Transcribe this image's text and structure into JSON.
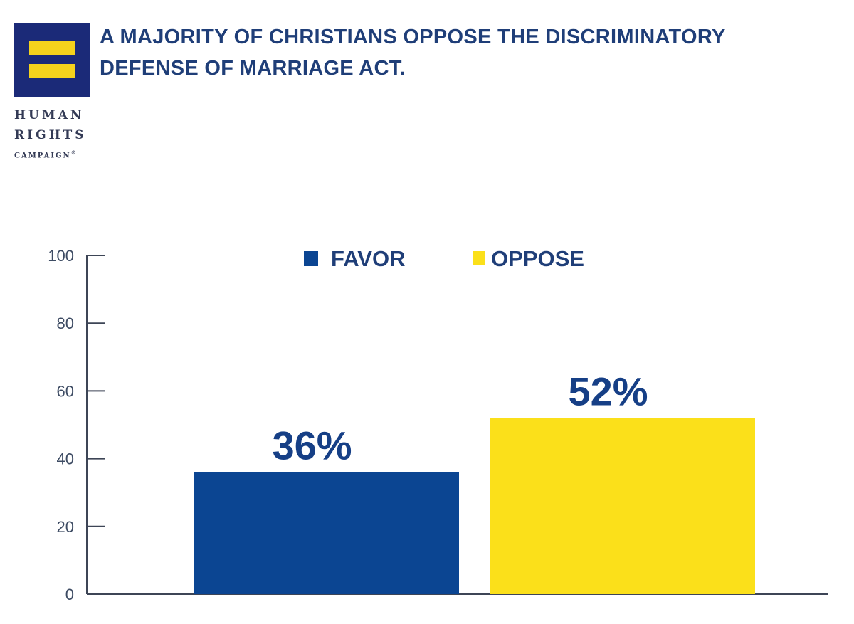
{
  "logo": {
    "line1": "HUMAN",
    "line2": "RIGHTS",
    "line3": "CAMPAIGN",
    "mark": "®"
  },
  "chart_data": {
    "type": "bar",
    "title_lines": [
      "A MAJORITY OF CHRISTIANS OPPOSE THE DISCRIMINATORY",
      "DEFENSE OF MARRIAGE ACT."
    ],
    "categories": [
      "FAVOR",
      "OPPOSE"
    ],
    "values": [
      36,
      52
    ],
    "value_labels": [
      "36%",
      "52%"
    ],
    "colors": [
      "#0b4592",
      "#fbe01a"
    ],
    "ylim": [
      0,
      100
    ],
    "yticks": [
      0,
      20,
      40,
      60,
      80,
      100
    ],
    "legend_position": "top-center",
    "xlabel": "",
    "ylabel": ""
  }
}
